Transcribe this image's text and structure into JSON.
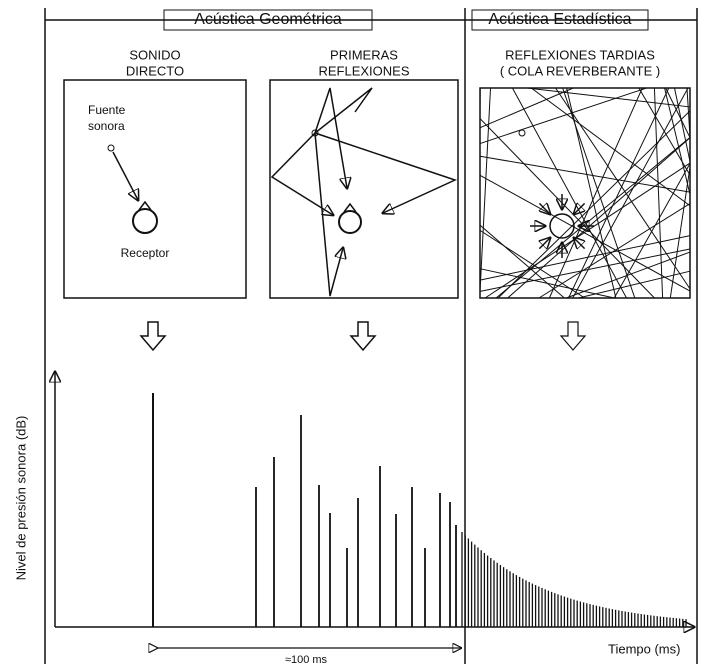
{
  "header": {
    "left": "Acústica Geométrica",
    "right": "Acústica Estadística"
  },
  "panels": [
    {
      "title": [
        "SONIDO",
        "DIRECTO"
      ],
      "source_label": [
        "Fuente",
        "sonora"
      ],
      "receiver_label": "Receptor"
    },
    {
      "title": [
        "PRIMERAS",
        "REFLEXIONES"
      ]
    },
    {
      "title": [
        "REFLEXIONES  TARDIAS",
        "( COLA REVERBERANTE )"
      ]
    }
  ],
  "plot": {
    "y_label": "Nivel de presión sonora (dB)",
    "x_label": "Tiempo (ms)",
    "interval_label": "≈100 ms"
  }
}
